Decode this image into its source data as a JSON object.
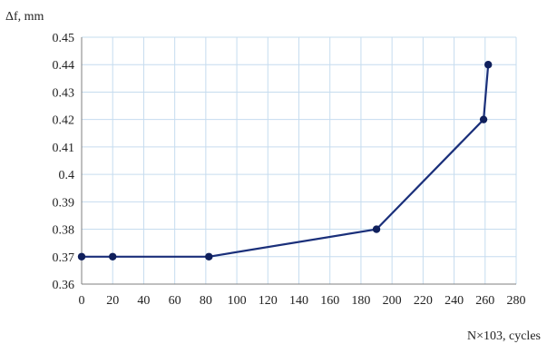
{
  "chart_data": {
    "type": "line",
    "title": "",
    "xlabel": "N×103, cycles",
    "ylabel": "Δf, mm",
    "xlim": [
      0,
      280
    ],
    "ylim": [
      0.36,
      0.45
    ],
    "x_ticks": [
      "0",
      "20",
      "40",
      "60",
      "80",
      "100",
      "120",
      "140",
      "160",
      "180",
      "200",
      "220",
      "240",
      "260",
      "280"
    ],
    "y_ticks": [
      "0.36",
      "0.37",
      "0.38",
      "0.39",
      "0.4",
      "0.41",
      "0.42",
      "0.43",
      "0.44",
      "0.45"
    ],
    "grid": true,
    "legend": "none",
    "series": [
      {
        "x": [
          0,
          20,
          82,
          190,
          259,
          262
        ],
        "values": [
          0.37,
          0.37,
          0.37,
          0.38,
          0.42,
          0.44
        ],
        "color": "#1a2f7a",
        "marker_color": "#0f1f5c"
      }
    ],
    "colors": {
      "grid": "#c6dcef",
      "axis": "#7f7f7f"
    }
  }
}
